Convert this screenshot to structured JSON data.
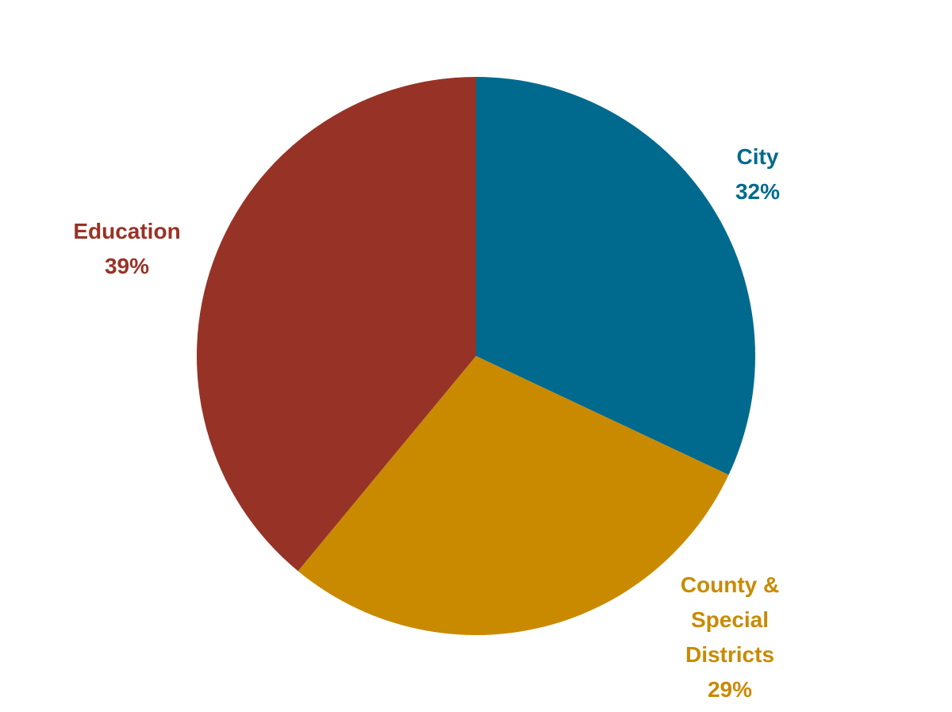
{
  "chart_data": {
    "type": "pie",
    "categories": [
      "City",
      "County & Special Districts",
      "Education"
    ],
    "values": [
      32,
      29,
      39
    ],
    "value_labels": [
      "32%",
      "29%",
      "39%"
    ],
    "colors": [
      "#006a8e",
      "#c98a00",
      "#973326"
    ]
  }
}
